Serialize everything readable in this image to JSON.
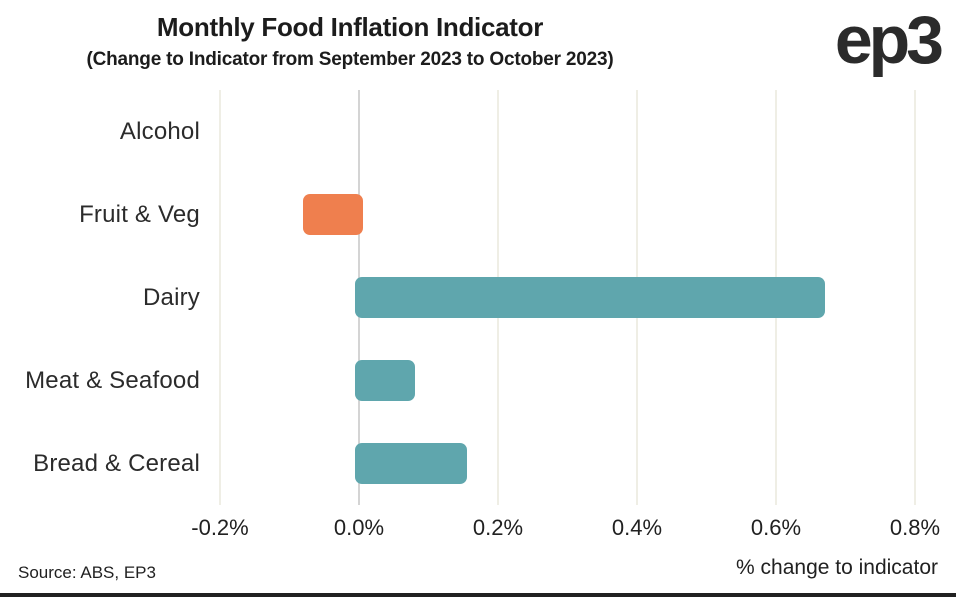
{
  "header": {
    "title": "Monthly Food Inflation Indicator",
    "subtitle": "(Change to Indicator from September 2023 to October 2023)",
    "logo_text": "ep3"
  },
  "chart_data": {
    "type": "bar",
    "orientation": "horizontal",
    "title": "Monthly Food Inflation Indicator",
    "subtitle": "(Change to Indicator from September 2023 to October 2023)",
    "categories": [
      "Alcohol",
      "Fruit & Veg",
      "Dairy",
      "Meat & Seafood",
      "Bread & Cereal"
    ],
    "values": [
      0.0,
      -0.08,
      0.67,
      0.08,
      0.155
    ],
    "unit": "%",
    "xlabel": "% change to indicator",
    "xlim": [
      -0.2,
      0.8
    ],
    "x_tick_values": [
      -0.2,
      0.0,
      0.2,
      0.4,
      0.6,
      0.8
    ],
    "x_ticks": [
      "-0.2%",
      "0.0%",
      "0.2%",
      "0.4%",
      "0.6%",
      "0.8%"
    ],
    "grid": "vertical",
    "legend": "none",
    "colors": {
      "positive": "#5fa6ad",
      "negative": "#ef7f4e"
    }
  },
  "footer": {
    "source": "Source: ABS, EP3",
    "axis_label": "% change to indicator"
  }
}
